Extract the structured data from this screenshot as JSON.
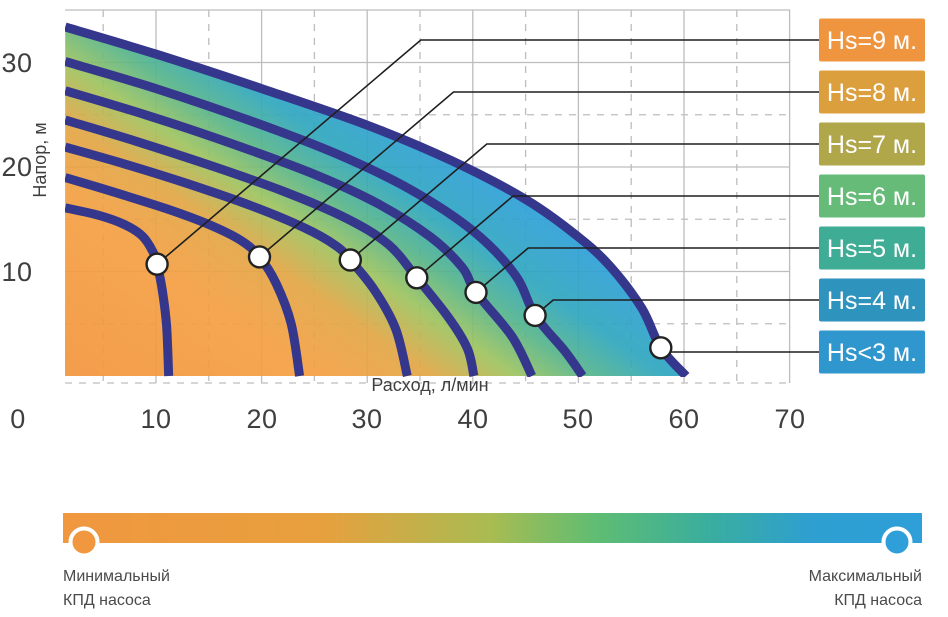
{
  "colors": {
    "curve": "#35378C",
    "grid": "#BDBDBD",
    "text": "#3F3F3F",
    "leader_line": "#1F1F1F",
    "marker_fill": "#FFFFFF",
    "marker_stroke": "#222222",
    "fill_gradient": [
      "#F2953C",
      "#F59E41",
      "#E2A645",
      "#9DC35F",
      "#55B48B",
      "#2FA6BE",
      "#2E9FD8"
    ]
  },
  "chart_data": {
    "type": "line",
    "title": "",
    "xlabel": "Расход, л/мин",
    "ylabel": "Напор, м",
    "xlim": [
      0,
      70
    ],
    "ylim": [
      0,
      35
    ],
    "x_ticks": [
      0,
      10,
      20,
      30,
      40,
      50,
      60,
      70
    ],
    "y_ticks": [
      10,
      20,
      30
    ],
    "grid": "on: major gridlines every 10 solid, minor every 5 dashed",
    "legend_position": "right",
    "series": [
      {
        "name": "Hs=9 м.",
        "badge_color": "#F0953F",
        "points": [
          [
            1.4,
            16.1
          ],
          [
            4.5,
            15.4
          ],
          [
            7,
            14.5
          ],
          [
            8.7,
            13.4
          ],
          [
            9.7,
            11.9
          ],
          [
            10.1,
            10.7
          ],
          [
            10.6,
            8.2
          ],
          [
            11,
            4.8
          ],
          [
            11.2,
            0
          ]
        ],
        "marker": [
          10.1,
          10.7
        ]
      },
      {
        "name": "Hs=8 м.",
        "badge_color": "#DC9F3D",
        "points": [
          [
            1.4,
            19.0
          ],
          [
            6,
            17.6
          ],
          [
            11,
            16.0
          ],
          [
            15,
            14.5
          ],
          [
            18,
            13.0
          ],
          [
            19.8,
            11.4
          ],
          [
            21.4,
            8.8
          ],
          [
            22.8,
            5.0
          ],
          [
            23.6,
            0
          ]
        ],
        "marker": [
          19.8,
          11.4
        ]
      },
      {
        "name": "Hs=7 м.",
        "badge_color": "#B0A74B",
        "points": [
          [
            1.4,
            21.9
          ],
          [
            7,
            20.3
          ],
          [
            13,
            18.4
          ],
          [
            19,
            16.3
          ],
          [
            24,
            14.2
          ],
          [
            27,
            12.5
          ],
          [
            28.4,
            11.1
          ],
          [
            30.7,
            8.2
          ],
          [
            32.7,
            4.5
          ],
          [
            33.8,
            0
          ]
        ],
        "marker": [
          28.4,
          11.1
        ]
      },
      {
        "name": "Hs=6 м.",
        "badge_color": "#66BB79",
        "points": [
          [
            1.4,
            24.5
          ],
          [
            8,
            22.5
          ],
          [
            15,
            20.2
          ],
          [
            22,
            17.7
          ],
          [
            28,
            15.1
          ],
          [
            32,
            12.6
          ],
          [
            34.7,
            9.4
          ],
          [
            37.7,
            5.6
          ],
          [
            39.5,
            2.6
          ],
          [
            40.1,
            0
          ]
        ],
        "marker": [
          34.7,
          9.4
        ]
      },
      {
        "name": "Hs=5 м.",
        "badge_color": "#3FAD96",
        "points": [
          [
            1.4,
            27.3
          ],
          [
            9,
            25.0
          ],
          [
            17,
            22.3
          ],
          [
            25,
            19.3
          ],
          [
            31,
            16.5
          ],
          [
            36,
            13.3
          ],
          [
            39,
            10.4
          ],
          [
            40.3,
            8.0
          ],
          [
            43.7,
            3.8
          ],
          [
            45.6,
            0
          ]
        ],
        "marker": [
          40.3,
          8.0
        ]
      },
      {
        "name": "Hs=4 м.",
        "badge_color": "#2E93BD",
        "points": [
          [
            1.4,
            30.1
          ],
          [
            10,
            27.5
          ],
          [
            19,
            24.4
          ],
          [
            27,
            21.3
          ],
          [
            34,
            17.9
          ],
          [
            40,
            13.9
          ],
          [
            44,
            9.7
          ],
          [
            45.9,
            5.8
          ],
          [
            48.7,
            2.4
          ],
          [
            50.4,
            0
          ]
        ],
        "marker": [
          45.9,
          5.8
        ]
      },
      {
        "name": "Hs<3 м.",
        "badge_color": "#2F97CE",
        "points": [
          [
            1.4,
            33.4
          ],
          [
            10,
            30.8
          ],
          [
            20,
            27.5
          ],
          [
            30,
            24.0
          ],
          [
            38,
            20.6
          ],
          [
            45,
            16.9
          ],
          [
            50,
            13.3
          ],
          [
            53,
            10.5
          ],
          [
            56,
            6.5
          ],
          [
            57.8,
            2.7
          ],
          [
            60.2,
            0
          ]
        ],
        "marker": [
          57.8,
          2.7
        ]
      }
    ]
  },
  "efficiency_bar": {
    "left_label": [
      "Минимальный",
      "КПД насоса"
    ],
    "right_label": [
      "Максимальный",
      "КПД насоса"
    ],
    "gradient": [
      "#F0973F",
      "#E8A03E",
      "#A8BC52",
      "#5FBD72",
      "#3AAE9E",
      "#2E9FD0",
      "#2E9FD8"
    ],
    "left_dot_color": "#F0973F",
    "right_dot_color": "#2E9FD8"
  }
}
